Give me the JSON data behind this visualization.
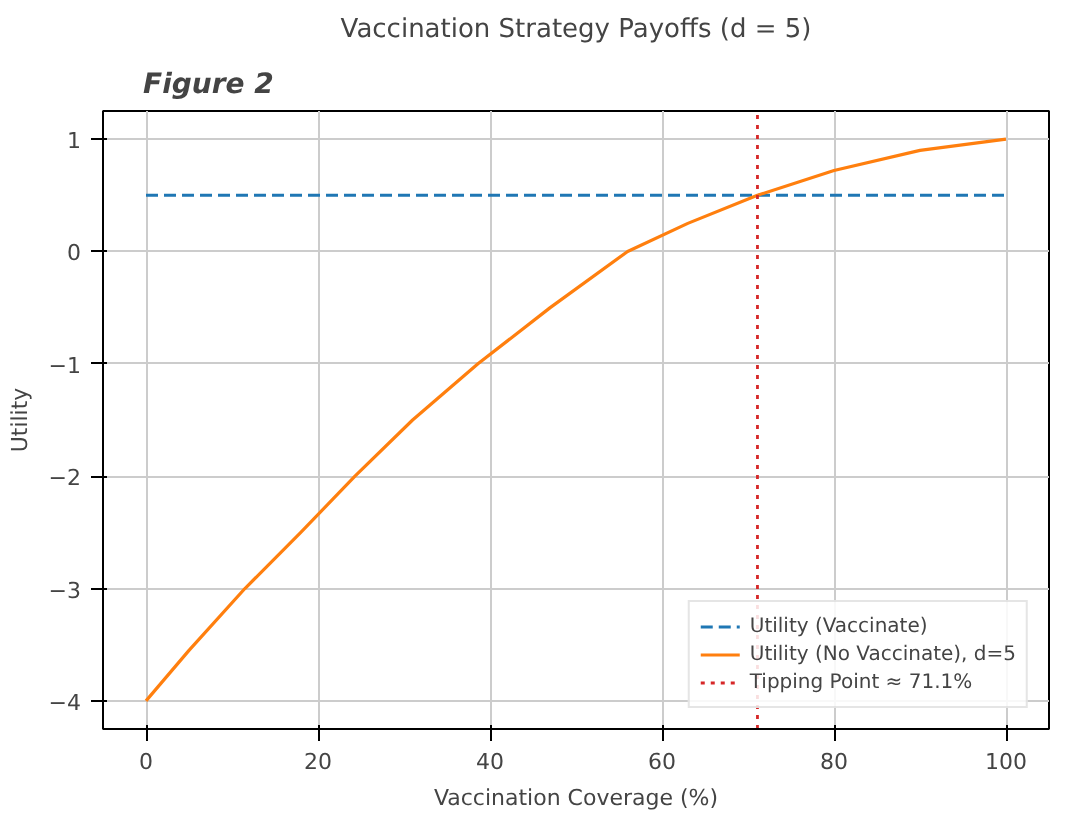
{
  "chart_data": {
    "type": "line",
    "title": "Vaccination Strategy Payoffs (d = 5)",
    "xlabel": "Vaccination Coverage (%)",
    "ylabel": "Utility",
    "annotations": [
      "Figure 2"
    ],
    "series": [
      {
        "name": "Utility (Vaccinate)",
        "color": "#1f77b4",
        "line_style": "dashed",
        "x": [
          0,
          100
        ],
        "values": [
          0.5,
          0.5
        ]
      },
      {
        "name": "Utility (No Vaccinate), d=5",
        "color": "#ff7f0e",
        "line_style": "solid",
        "x": [
          0,
          5,
          11.5,
          18,
          24.3,
          31,
          38.6,
          47,
          56,
          63,
          71.1,
          80,
          90,
          100
        ],
        "values": [
          -4,
          -3.55,
          -3,
          -2.5,
          -2,
          -1.5,
          -1,
          -0.5,
          0,
          0.25,
          0.5,
          0.72,
          0.9,
          1
        ]
      }
    ],
    "ref_lines": [
      {
        "axis": "x",
        "value": 71.1,
        "label": "Tipping Point ≈ 71.1%",
        "color": "#d62728",
        "line_style": "dotted"
      }
    ],
    "xlim": [
      -5,
      105
    ],
    "ylim": [
      -4.25,
      1.25
    ],
    "xticks": [
      0,
      20,
      40,
      60,
      80,
      100
    ],
    "yticks": [
      -4,
      -3,
      -2,
      -1,
      0,
      1
    ],
    "grid": true,
    "legend": "bottom right"
  }
}
